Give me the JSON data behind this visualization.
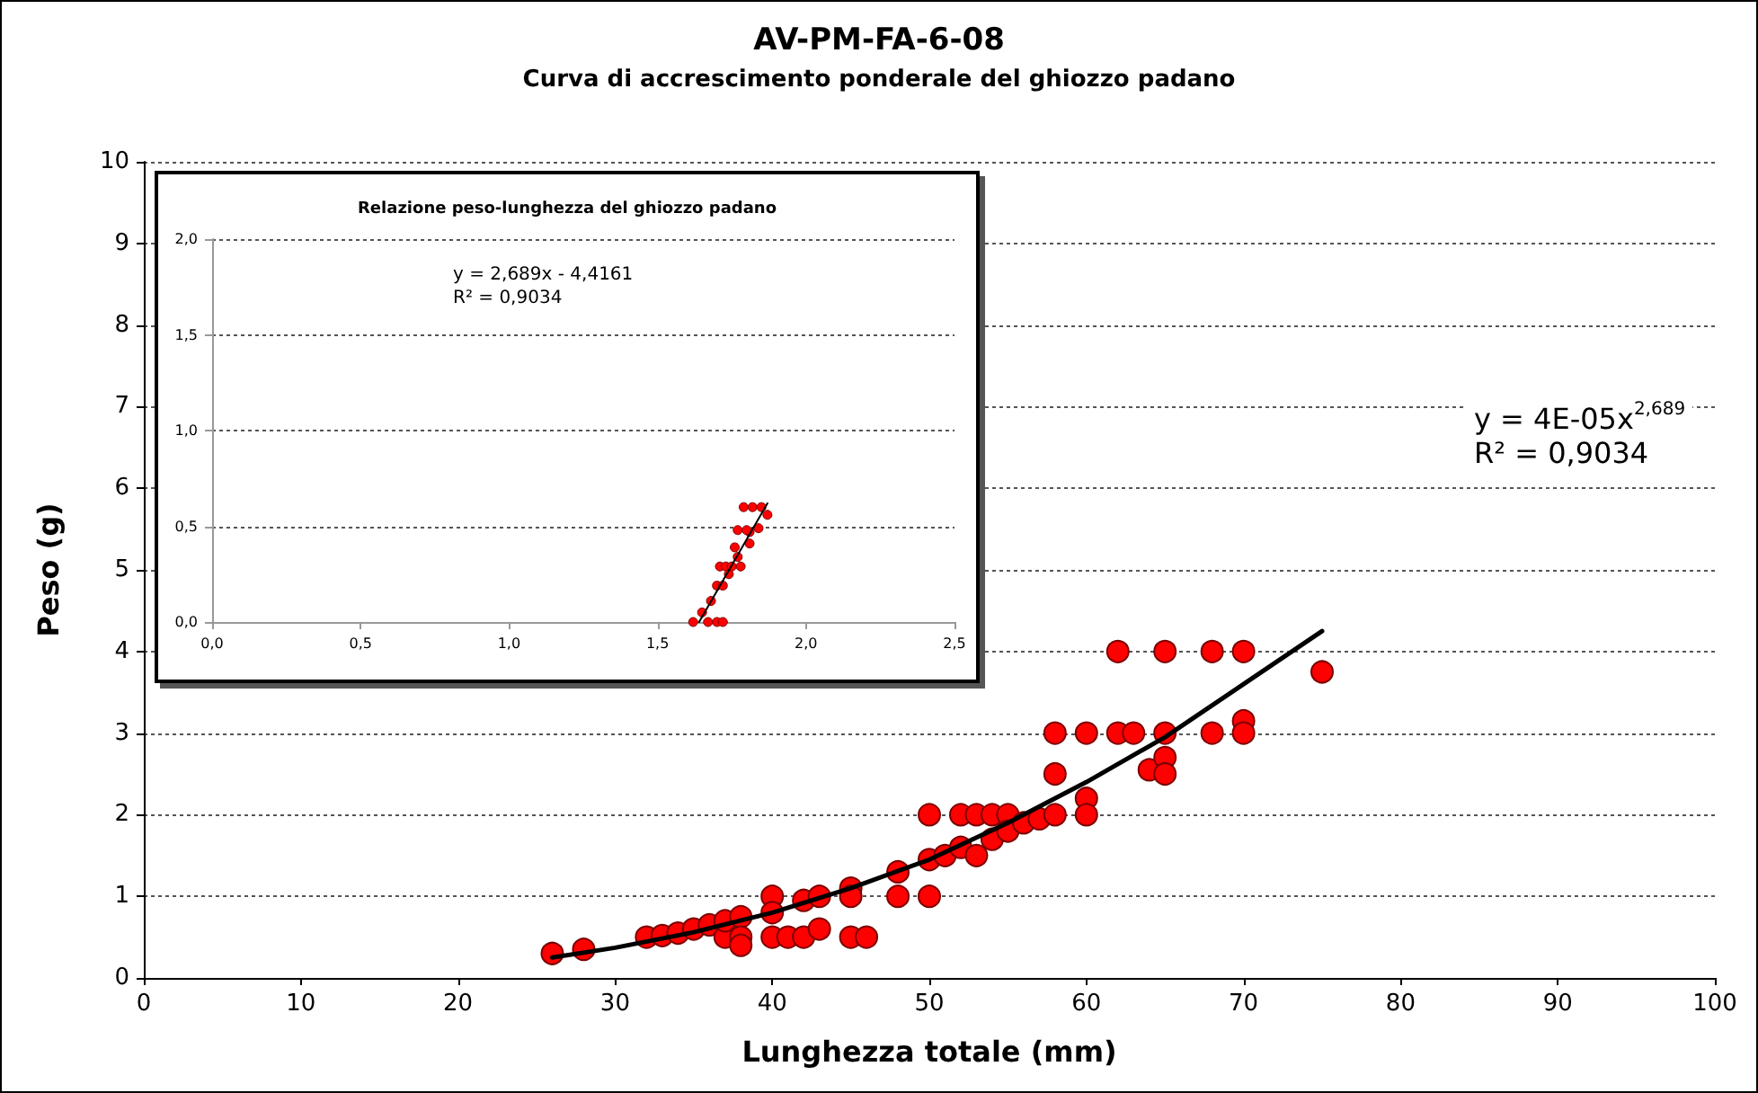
{
  "chart_data": [
    {
      "type": "scatter",
      "title": "AV-PM-FA-6-08",
      "subtitle": "Curva di accrescimento ponderale del ghiozzo padano",
      "xlabel": "Lunghezza totale (mm)",
      "ylabel": "Peso (g)",
      "xlim": [
        0,
        100
      ],
      "xticks": [
        0,
        10,
        20,
        30,
        40,
        50,
        60,
        70,
        80,
        90,
        100
      ],
      "ylim": [
        0,
        10
      ],
      "yticks": [
        0,
        1,
        2,
        3,
        4,
        5,
        6,
        7,
        8,
        9,
        10
      ],
      "grid": "y",
      "marker": "circle",
      "annotations": [
        "y = 4E-05x$^{2,689}$",
        "R² = 0,9034"
      ],
      "series": [
        {
          "color": "#ff0000",
          "x": [
            26,
            28,
            32,
            33,
            34,
            35,
            36,
            37,
            37,
            38,
            38,
            38,
            40,
            40,
            40,
            41,
            42,
            42,
            43,
            43,
            45,
            45,
            45,
            46,
            48,
            48,
            50,
            50,
            50,
            51,
            52,
            52,
            53,
            53,
            54,
            54,
            55,
            55,
            56,
            57,
            58,
            58,
            58,
            60,
            60,
            60,
            62,
            62,
            63,
            64,
            65,
            65,
            65,
            65,
            68,
            68,
            70,
            70,
            70,
            75
          ],
          "values": [
            0.3,
            0.35,
            0.5,
            0.52,
            0.55,
            0.6,
            0.65,
            0.5,
            0.7,
            0.75,
            0.5,
            0.4,
            1.0,
            0.8,
            0.5,
            0.5,
            0.5,
            0.95,
            1.0,
            0.6,
            1.1,
            1.0,
            0.5,
            0.5,
            1.3,
            1.0,
            2.0,
            1.45,
            1.0,
            1.5,
            2.0,
            1.6,
            2.0,
            1.5,
            2.0,
            1.7,
            2.0,
            1.8,
            1.9,
            1.95,
            3.0,
            2.5,
            2.0,
            3.0,
            2.2,
            2.0,
            4.0,
            3.0,
            3.0,
            2.55,
            4.0,
            3.0,
            2.7,
            2.5,
            4.0,
            3.0,
            4.0,
            3.15,
            3.0,
            3.75
          ]
        },
        {
          "type": "line",
          "color": "#000000",
          "marker": "none",
          "x": [
            26,
            30,
            35,
            40,
            45,
            50,
            55,
            60,
            65,
            70,
            75
          ],
          "values": [
            0.25,
            0.37,
            0.56,
            0.8,
            1.1,
            1.45,
            1.9,
            2.4,
            2.95,
            3.6,
            4.25
          ]
        }
      ]
    },
    {
      "type": "scatter",
      "title": "Relazione peso-lunghezza del ghiozzo padano",
      "xlim": [
        0,
        2.5
      ],
      "xticks": [
        {
          "value": 0,
          "label": "0,0"
        },
        {
          "value": 0.5,
          "label": "0,5"
        },
        {
          "value": 1,
          "label": "1,0"
        },
        {
          "value": 1.5,
          "label": "1,5"
        },
        {
          "value": 2,
          "label": "2,0"
        },
        {
          "value": 2.5,
          "label": "2,5"
        }
      ],
      "ylim": [
        0,
        2
      ],
      "yticks": [
        {
          "value": 0,
          "label": "0,0"
        },
        {
          "value": 0.5,
          "label": "0,5"
        },
        {
          "value": 1,
          "label": "1,0"
        },
        {
          "value": 1.5,
          "label": "1,5"
        },
        {
          "value": 2,
          "label": "2,0"
        }
      ],
      "grid": "y",
      "marker": "circle",
      "annotations": [
        "y = 2,689x - 4,4161",
        "R² = 0,9034"
      ],
      "series": [
        {
          "color": "#ff0000",
          "x": [
            1.62,
            1.67,
            1.7,
            1.72,
            1.65,
            1.68,
            1.7,
            1.72,
            1.71,
            1.73,
            1.75,
            1.74,
            1.77,
            1.78,
            1.76,
            1.81,
            1.77,
            1.8,
            1.81,
            1.84,
            1.79,
            1.82,
            1.85,
            1.87
          ],
          "values": [
            0,
            0,
            0,
            0,
            0.05,
            0.11,
            0.19,
            0.19,
            0.29,
            0.29,
            0.29,
            0.25,
            0.34,
            0.29,
            0.39,
            0.47,
            0.48,
            0.48,
            0.41,
            0.49,
            0.6,
            0.6,
            0.6,
            0.56
          ]
        },
        {
          "type": "line",
          "color": "#000000",
          "marker": "none",
          "x": [
            1.64,
            1.87
          ],
          "values": [
            0,
            0.62
          ]
        }
      ]
    }
  ]
}
